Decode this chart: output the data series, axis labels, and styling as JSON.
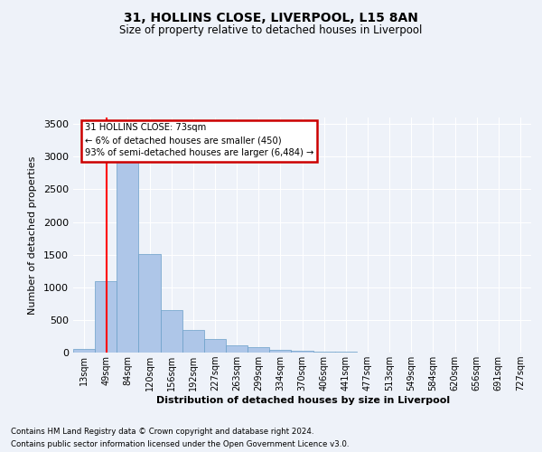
{
  "title1": "31, HOLLINS CLOSE, LIVERPOOL, L15 8AN",
  "title2": "Size of property relative to detached houses in Liverpool",
  "xlabel": "Distribution of detached houses by size in Liverpool",
  "ylabel": "Number of detached properties",
  "footnote1": "Contains HM Land Registry data © Crown copyright and database right 2024.",
  "footnote2": "Contains public sector information licensed under the Open Government Licence v3.0.",
  "annotation_line1": "31 HOLLINS CLOSE: 73sqm",
  "annotation_line2": "← 6% of detached houses are smaller (450)",
  "annotation_line3": "93% of semi-detached houses are larger (6,484) →",
  "bar_values": [
    50,
    1100,
    2920,
    1510,
    650,
    340,
    210,
    105,
    80,
    45,
    30,
    20,
    15,
    5,
    2,
    0,
    0,
    0,
    0,
    0,
    0
  ],
  "categories": [
    "13sqm",
    "49sqm",
    "84sqm",
    "120sqm",
    "156sqm",
    "192sqm",
    "227sqm",
    "263sqm",
    "299sqm",
    "334sqm",
    "370sqm",
    "406sqm",
    "441sqm",
    "477sqm",
    "513sqm",
    "549sqm",
    "584sqm",
    "620sqm",
    "656sqm",
    "691sqm",
    "727sqm"
  ],
  "bar_color": "#aec6e8",
  "bar_edge_color": "#6a9fc8",
  "red_line_x": 1.05,
  "ylim": [
    0,
    3600
  ],
  "yticks": [
    0,
    500,
    1000,
    1500,
    2000,
    2500,
    3000,
    3500
  ],
  "bg_color": "#eef2f9",
  "plot_bg_color": "#eef2f9",
  "grid_color": "#ffffff",
  "annotation_border_color": "#cc0000"
}
